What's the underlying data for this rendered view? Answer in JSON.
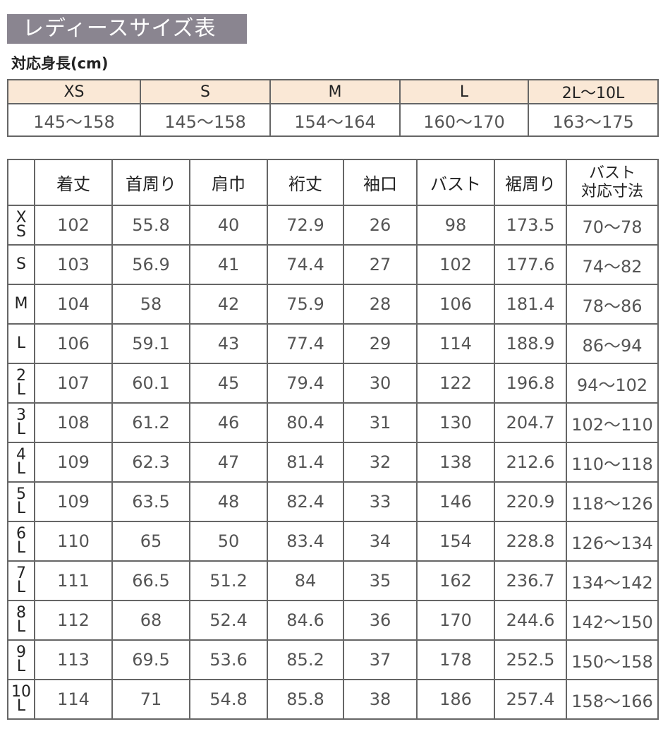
{
  "title": "レディースサイズ表",
  "height_section": {
    "label": "対応身長(cm)",
    "sizes": [
      "XS",
      "S",
      "M",
      "L",
      "2L〜10L"
    ],
    "ranges": [
      "145〜158",
      "145〜158",
      "154〜164",
      "160〜170",
      "163〜175"
    ]
  },
  "size_table": {
    "headers": [
      "",
      "着丈",
      "首周り",
      "肩巾",
      "裄丈",
      "袖口",
      "バスト",
      "裾周り",
      "バスト\n対応寸法"
    ],
    "rows": [
      {
        "size": "XS",
        "values": [
          "102",
          "55.8",
          "40",
          "72.9",
          "26",
          "98",
          "173.5",
          "70〜78"
        ]
      },
      {
        "size": "S",
        "values": [
          "103",
          "56.9",
          "41",
          "74.4",
          "27",
          "102",
          "177.6",
          "74〜82"
        ]
      },
      {
        "size": "M",
        "values": [
          "104",
          "58",
          "42",
          "75.9",
          "28",
          "106",
          "181.4",
          "78〜86"
        ]
      },
      {
        "size": "L",
        "values": [
          "106",
          "59.1",
          "43",
          "77.4",
          "29",
          "114",
          "188.9",
          "86〜94"
        ]
      },
      {
        "size": "2L",
        "values": [
          "107",
          "60.1",
          "45",
          "79.4",
          "30",
          "122",
          "196.8",
          "94〜102"
        ]
      },
      {
        "size": "3L",
        "values": [
          "108",
          "61.2",
          "46",
          "80.4",
          "31",
          "130",
          "204.7",
          "102〜110"
        ]
      },
      {
        "size": "4L",
        "values": [
          "109",
          "62.3",
          "47",
          "81.4",
          "32",
          "138",
          "212.6",
          "110〜118"
        ]
      },
      {
        "size": "5L",
        "values": [
          "109",
          "63.5",
          "48",
          "82.4",
          "33",
          "146",
          "220.9",
          "118〜126"
        ]
      },
      {
        "size": "6L",
        "values": [
          "110",
          "65",
          "50",
          "83.4",
          "34",
          "154",
          "228.8",
          "126〜134"
        ]
      },
      {
        "size": "7L",
        "values": [
          "111",
          "66.5",
          "51.2",
          "84",
          "35",
          "162",
          "236.7",
          "134〜142"
        ]
      },
      {
        "size": "8L",
        "values": [
          "112",
          "68",
          "52.4",
          "84.6",
          "36",
          "170",
          "244.6",
          "142〜150"
        ]
      },
      {
        "size": "9L",
        "values": [
          "113",
          "69.5",
          "53.6",
          "85.2",
          "37",
          "178",
          "252.5",
          "150〜158"
        ]
      },
      {
        "size": "10L",
        "values": [
          "114",
          "71",
          "54.8",
          "85.8",
          "38",
          "186",
          "257.4",
          "158〜166"
        ]
      }
    ]
  },
  "colors": {
    "title_bg": "#8a8590",
    "header_bg": "#fae8d6",
    "border": "#666666"
  }
}
